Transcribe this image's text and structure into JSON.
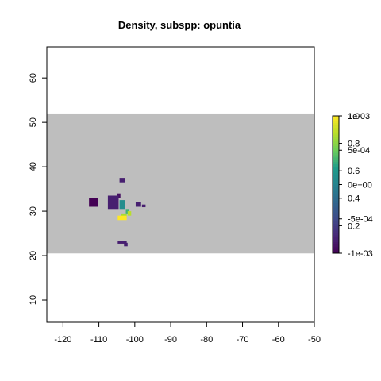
{
  "chart_data": {
    "type": "heatmap",
    "title": "Density, subspp: opuntia",
    "xlabel": "",
    "ylabel": "",
    "xlim": [
      -124.5,
      -50
    ],
    "ylim": [
      5,
      67
    ],
    "x_ticks": [
      -120,
      -110,
      -100,
      -90,
      -80,
      -70,
      -60,
      -50
    ],
    "x_tick_labels": [
      "-120",
      "-110",
      "-100",
      "-90",
      "-80",
      "-70",
      "-60",
      "-50"
    ],
    "y_ticks": [
      10,
      20,
      30,
      40,
      50,
      60
    ],
    "y_tick_labels": [
      "10",
      "20",
      "30",
      "40",
      "50",
      "60"
    ],
    "background_band": {
      "lat_min": 20.5,
      "lat_max": 52,
      "color": "#bebebe"
    },
    "cells": [
      {
        "lon": -103.5,
        "lat": 37,
        "w": 1.5,
        "h": 1,
        "value": 0.1
      },
      {
        "lon": -104.5,
        "lat": 33.5,
        "w": 1,
        "h": 1,
        "value": 0.05
      },
      {
        "lon": -111.5,
        "lat": 32,
        "w": 2.5,
        "h": 2,
        "value": 0.0
      },
      {
        "lon": -106,
        "lat": 32,
        "w": 3,
        "h": 3,
        "value": 0.1
      },
      {
        "lon": -103.5,
        "lat": 31.5,
        "w": 1.5,
        "h": 2,
        "value": 0.55
      },
      {
        "lon": -102,
        "lat": 30,
        "w": 1,
        "h": 1,
        "value": 0.68
      },
      {
        "lon": -101.5,
        "lat": 29.5,
        "w": 1,
        "h": 1,
        "value": 0.88
      },
      {
        "lon": -103,
        "lat": 29,
        "w": 1.5,
        "h": 1,
        "value": 0.85
      },
      {
        "lon": -103.5,
        "lat": 28.5,
        "w": 2.5,
        "h": 1,
        "value": 1.0
      },
      {
        "lon": -99,
        "lat": 31.5,
        "w": 1.5,
        "h": 1,
        "value": 0.1
      },
      {
        "lon": -97.5,
        "lat": 31.2,
        "w": 1,
        "h": 0.6,
        "value": 0.1
      },
      {
        "lon": -103.5,
        "lat": 23,
        "w": 2.5,
        "h": 0.6,
        "value": 0.1
      },
      {
        "lon": -102.5,
        "lat": 22.5,
        "w": 1,
        "h": 0.8,
        "value": 0.1
      }
    ],
    "legend": {
      "placement": "right",
      "colors": [
        "#440154",
        "#482777",
        "#3f4a8a",
        "#31678e",
        "#26838f",
        "#1f9d8a",
        "#6cce5a",
        "#b6de2b",
        "#fee825"
      ],
      "scale_a": {
        "range": [
          0.0,
          1.0
        ],
        "ticks": [
          0.2,
          0.4,
          0.6,
          0.8,
          1.0
        ],
        "labels": [
          "0.2",
          "0.4",
          "0.6",
          "0.8",
          "1.0"
        ]
      },
      "scale_b": {
        "range": [
          -0.001,
          0.001
        ],
        "ticks": [
          -0.001,
          -0.0005,
          0.0,
          0.0005,
          0.001
        ],
        "labels": [
          "-1e-03",
          "-5e-04",
          "0e+00",
          "5e-04",
          "1e-03"
        ]
      }
    }
  }
}
